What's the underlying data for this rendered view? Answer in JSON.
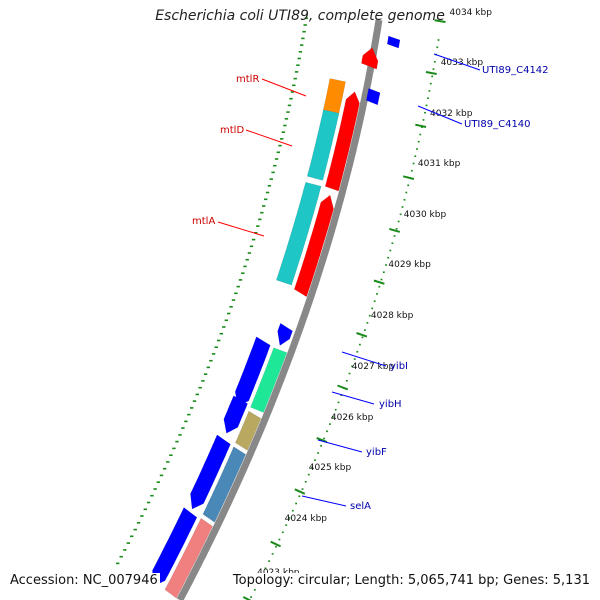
{
  "title": "Escherichia coli UTI89, complete genome",
  "accession": "Accession: NC_007946",
  "topology": "Topology: circular; Length: 5,065,741 bp; Genes: 5,131",
  "colors": {
    "backbone": "#888888",
    "tick": "#1a8a1a",
    "red": "#ff0000",
    "blue": "#0000ff",
    "cyan": "#1ec6c6",
    "orange": "#ff8c00",
    "green": "#1ee898",
    "olive": "#b8a860",
    "steel": "#4a88b8",
    "pink": "#f08080",
    "labelRed": "#cc0000",
    "labelBlue": "#0000aa"
  },
  "ticks": [
    "4034 kbp",
    "4033 kbp",
    "4032 kbp",
    "4031 kbp",
    "4030 kbp",
    "4029 kbp",
    "4028 kbp",
    "4027 kbp",
    "4026 kbp",
    "4025 kbp",
    "4024 kbp",
    "4023 kbp"
  ],
  "labels": {
    "mtlR": "mtlR",
    "mtlD": "mtlD",
    "mtlA": "mtlA",
    "c4142": "UTI89_C4142",
    "c4140": "UTI89_C4140",
    "yibI": "yibI",
    "yibH": "yibH",
    "yibF": "yibF",
    "selA": "selA"
  }
}
